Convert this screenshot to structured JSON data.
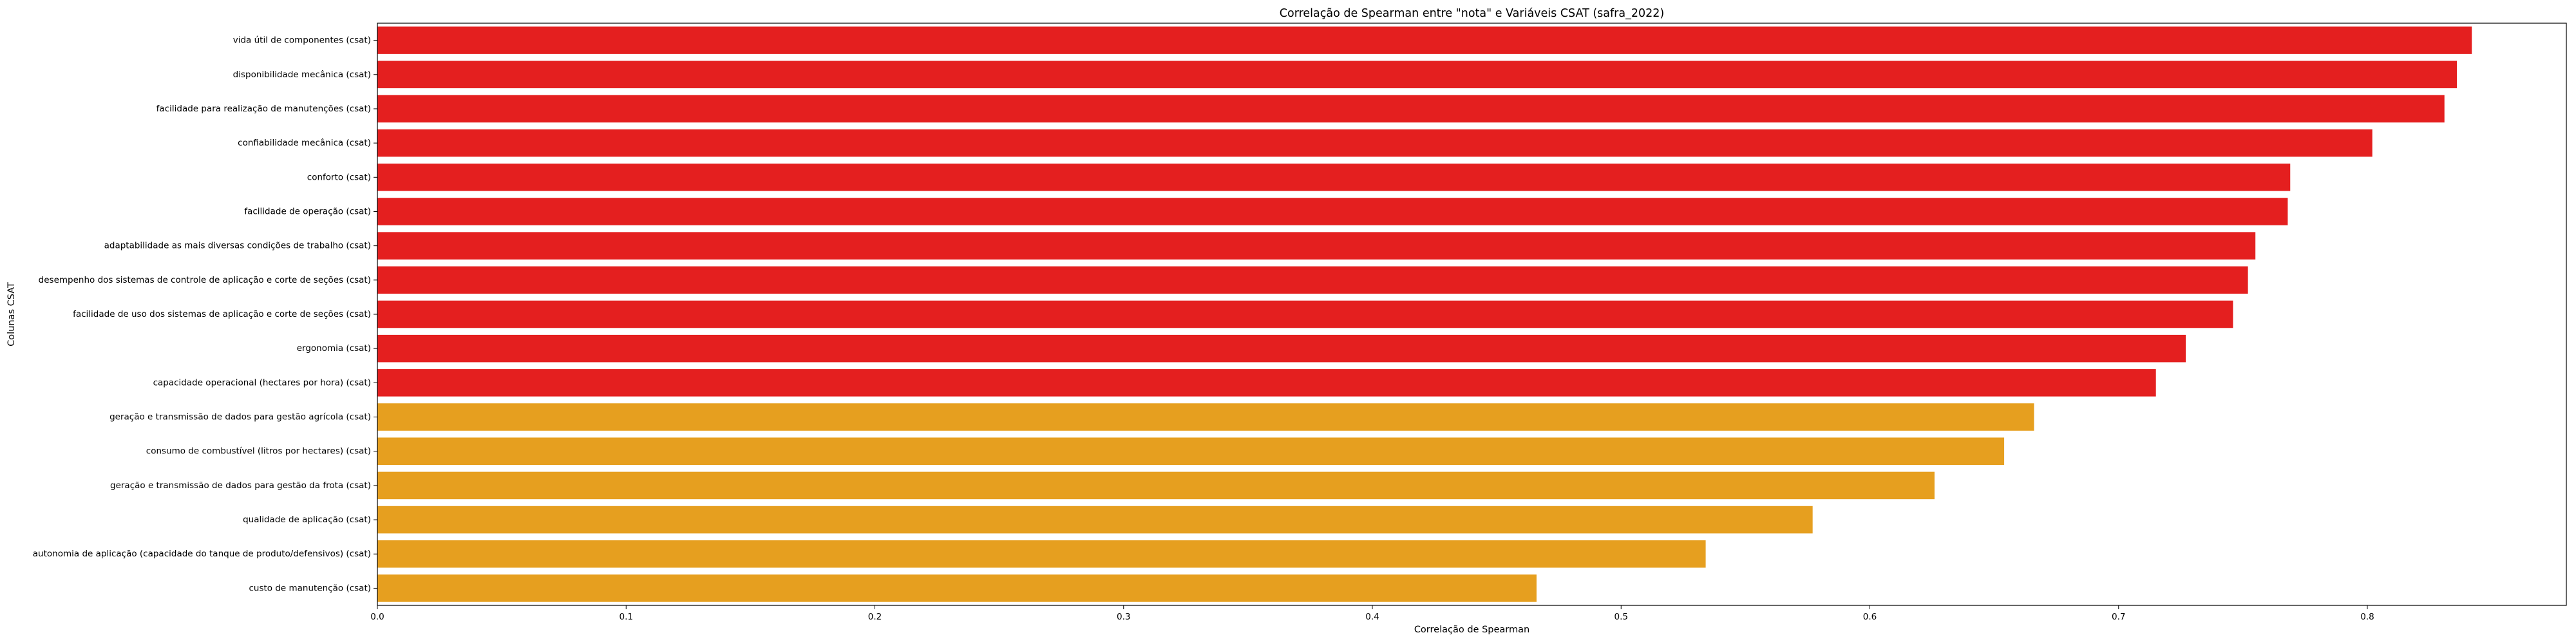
{
  "chart_data": {
    "type": "bar",
    "orientation": "horizontal",
    "title": "Correlação de Spearman entre \"nota\" e Variáveis CSAT (safra_2022)",
    "xlabel": "Correlação de Spearman",
    "ylabel": "Colunas CSAT",
    "xlim": [
      0,
      0.88
    ],
    "xticks": [
      0.0,
      0.1,
      0.2,
      0.3,
      0.4,
      0.5,
      0.6,
      0.7,
      0.8
    ],
    "xtick_labels": [
      "0.0",
      "0.1",
      "0.2",
      "0.3",
      "0.4",
      "0.5",
      "0.6",
      "0.7",
      "0.8"
    ],
    "grid": false,
    "legend": "none",
    "colors": {
      "high": "#e41f1f",
      "medium": "#e69f1f"
    },
    "categories": [
      "vida útil de componentes (csat)",
      "disponibilidade mecânica (csat)",
      "facilidade para realização de manutenções (csat)",
      "confiabilidade mecânica (csat)",
      "conforto (csat)",
      "facilidade de operação (csat)",
      "adaptabilidade as mais diversas condições de trabalho (csat)",
      "desempenho dos sistemas de controle de aplicação e corte de seções (csat)",
      "facilidade de uso dos sistemas de aplicação e corte de seções (csat)",
      "ergonomia (csat)",
      "capacidade operacional (hectares por hora) (csat)",
      "geração e transmissão de dados para gestão agrícola (csat)",
      "consumo de combustível (litros por hectares) (csat)",
      "geração e transmissão de dados para gestão da frota (csat)",
      "qualidade de aplicação (csat)",
      "autonomia de aplicação (capacidade do tanque de produto/defensivos) (csat)",
      "custo de manutenção (csat)"
    ],
    "values": [
      0.842,
      0.836,
      0.831,
      0.802,
      0.769,
      0.768,
      0.755,
      0.752,
      0.746,
      0.727,
      0.715,
      0.666,
      0.654,
      0.626,
      0.577,
      0.534,
      0.466
    ],
    "bar_color_groups": [
      "high",
      "high",
      "high",
      "high",
      "high",
      "high",
      "high",
      "high",
      "high",
      "high",
      "high",
      "medium",
      "medium",
      "medium",
      "medium",
      "medium",
      "medium"
    ]
  }
}
